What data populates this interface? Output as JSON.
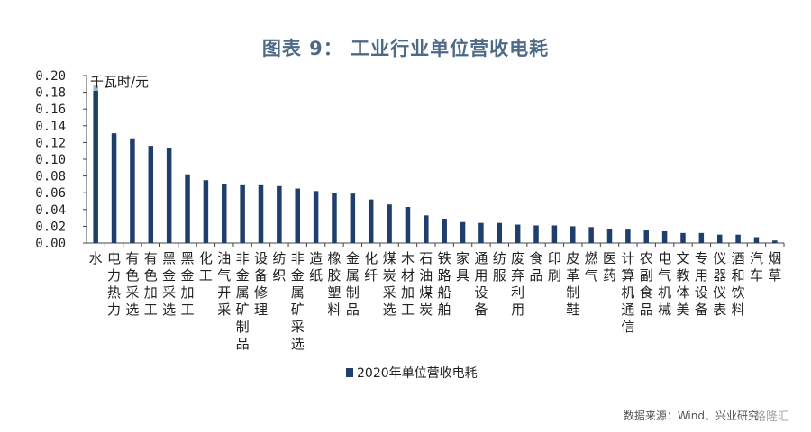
{
  "title": "图表 9：  工业行业单位营收电耗",
  "source": "数据来源：Wind、兴业研究",
  "watermark": "格隆汇",
  "colors": {
    "bar": "#1f3e6b",
    "title": "#4d6a86",
    "axis": "#444444"
  },
  "chart_data": {
    "type": "bar",
    "unit_label": "千瓦时/元",
    "ylim": [
      0,
      0.2
    ],
    "yticks": [
      "0.00",
      "0.02",
      "0.04",
      "0.06",
      "0.08",
      "0.10",
      "0.12",
      "0.14",
      "0.16",
      "0.18",
      "0.20"
    ],
    "grid": false,
    "legend_position": "bottom",
    "series": [
      {
        "name": "2020年单位营收电耗",
        "values": [
          0.188,
          0.131,
          0.125,
          0.116,
          0.114,
          0.082,
          0.075,
          0.07,
          0.069,
          0.069,
          0.068,
          0.065,
          0.062,
          0.06,
          0.059,
          0.052,
          0.046,
          0.043,
          0.033,
          0.029,
          0.025,
          0.024,
          0.024,
          0.022,
          0.021,
          0.021,
          0.02,
          0.019,
          0.017,
          0.016,
          0.015,
          0.014,
          0.012,
          0.012,
          0.01,
          0.01,
          0.007,
          0.003
        ]
      }
    ],
    "categories": [
      "水",
      "电力热力",
      "有色采选",
      "有色加工",
      "黑金采选",
      "黑金加工",
      "化工",
      "油气开采",
      "非金属矿制品",
      "设备修理",
      "纺织",
      "非金属矿采选",
      "造纸",
      "橡胶塑料",
      "金属制品",
      "化纤",
      "煤炭采选",
      "木材加工",
      "石油煤炭",
      "铁路船舶",
      "家具",
      "通用设备",
      "纺服",
      "废弃利用",
      "食品",
      "印刷",
      "皮革制鞋",
      "燃气",
      "医药",
      "计算机通信",
      "农副食品",
      "电气机械",
      "文教体美",
      "专用设备",
      "仪器仪表",
      "酒和饮料",
      "汽车",
      "烟草"
    ]
  }
}
